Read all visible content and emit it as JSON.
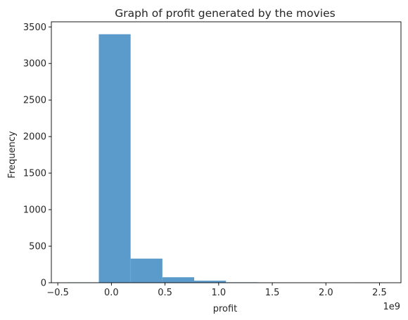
{
  "chart_data": {
    "type": "bar",
    "title": "Graph of profit generated by the movies",
    "xlabel": "profit",
    "ylabel": "Frequency",
    "x_offset_label": "1e9",
    "bin_edges": [
      -0.4138,
      -0.1174,
      0.179,
      0.4754,
      0.7718,
      1.0682,
      1.3646,
      1.661,
      1.9574,
      2.2538,
      2.5502
    ],
    "values": [
      5,
      3400,
      330,
      75,
      28,
      6,
      2,
      1,
      0,
      1
    ],
    "xlim": [
      -0.56,
      2.7
    ],
    "ylim": [
      0,
      3570
    ],
    "x_ticks": [
      -0.5,
      0.0,
      0.5,
      1.0,
      1.5,
      2.0,
      2.5
    ],
    "x_tick_labels": [
      "−0.5",
      "0.0",
      "0.5",
      "1.0",
      "1.5",
      "2.0",
      "2.5"
    ],
    "y_ticks": [
      0,
      500,
      1000,
      1500,
      2000,
      2500,
      3000,
      3500
    ],
    "y_tick_labels": [
      "0",
      "500",
      "1000",
      "1500",
      "2000",
      "2500",
      "3000",
      "3500"
    ],
    "bar_color": "#5b9bcb",
    "grid": false
  }
}
